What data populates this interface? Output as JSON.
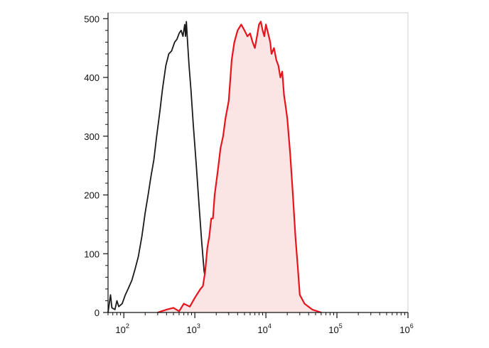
{
  "chart_data": {
    "type": "area",
    "xscale": "log",
    "xlim": [
      60,
      1000000
    ],
    "ylim": [
      0,
      510
    ],
    "x_ticks": [
      {
        "value": 100,
        "base": "10",
        "exp": "2"
      },
      {
        "value": 1000,
        "base": "10",
        "exp": "3"
      },
      {
        "value": 10000,
        "base": "10",
        "exp": "4"
      },
      {
        "value": 100000,
        "base": "10",
        "exp": "5"
      },
      {
        "value": 1000000,
        "base": "10",
        "exp": "6"
      }
    ],
    "y_ticks": [
      {
        "value": 0,
        "label": "0"
      },
      {
        "value": 100,
        "label": "100"
      },
      {
        "value": 200,
        "label": "200"
      },
      {
        "value": 300,
        "label": "300"
      },
      {
        "value": 400,
        "label": "400"
      },
      {
        "value": 500,
        "label": "500"
      }
    ],
    "series": [
      {
        "color": "#1a1a1a",
        "fill": "none",
        "points": [
          [
            60,
            0
          ],
          [
            65,
            30
          ],
          [
            68,
            8
          ],
          [
            75,
            5
          ],
          [
            80,
            20
          ],
          [
            85,
            10
          ],
          [
            95,
            15
          ],
          [
            105,
            30
          ],
          [
            115,
            40
          ],
          [
            130,
            55
          ],
          [
            145,
            75
          ],
          [
            160,
            95
          ],
          [
            180,
            130
          ],
          [
            200,
            170
          ],
          [
            220,
            200
          ],
          [
            240,
            230
          ],
          [
            265,
            260
          ],
          [
            290,
            300
          ],
          [
            320,
            340
          ],
          [
            350,
            380
          ],
          [
            390,
            420
          ],
          [
            430,
            440
          ],
          [
            470,
            445
          ],
          [
            520,
            460
          ],
          [
            560,
            465
          ],
          [
            600,
            475
          ],
          [
            640,
            480
          ],
          [
            680,
            470
          ],
          [
            720,
            490
          ],
          [
            740,
            470
          ],
          [
            760,
            495
          ],
          [
            790,
            460
          ],
          [
            830,
            420
          ],
          [
            880,
            380
          ],
          [
            950,
            320
          ],
          [
            1050,
            250
          ],
          [
            1150,
            180
          ],
          [
            1250,
            120
          ],
          [
            1350,
            70
          ],
          [
            1500,
            40
          ],
          [
            1650,
            25
          ],
          [
            1800,
            15
          ],
          [
            2000,
            8
          ],
          [
            2300,
            4
          ],
          [
            2700,
            1
          ],
          [
            3000,
            0
          ]
        ]
      },
      {
        "color": "#e8141c",
        "fill": "#fbe4e4",
        "points": [
          [
            300,
            0
          ],
          [
            400,
            5
          ],
          [
            500,
            8
          ],
          [
            600,
            2
          ],
          [
            700,
            15
          ],
          [
            850,
            10
          ],
          [
            1000,
            25
          ],
          [
            1200,
            40
          ],
          [
            1300,
            45
          ],
          [
            1400,
            70
          ],
          [
            1500,
            110
          ],
          [
            1600,
            130
          ],
          [
            1700,
            160
          ],
          [
            1800,
            160
          ],
          [
            1900,
            200
          ],
          [
            2100,
            240
          ],
          [
            2300,
            280
          ],
          [
            2500,
            300
          ],
          [
            2700,
            330
          ],
          [
            3000,
            360
          ],
          [
            3300,
            430
          ],
          [
            3600,
            460
          ],
          [
            4000,
            480
          ],
          [
            4500,
            490
          ],
          [
            5000,
            480
          ],
          [
            5500,
            470
          ],
          [
            6000,
            475
          ],
          [
            6500,
            460
          ],
          [
            7000,
            450
          ],
          [
            7500,
            470
          ],
          [
            8000,
            490
          ],
          [
            8500,
            495
          ],
          [
            9000,
            480
          ],
          [
            9500,
            470
          ],
          [
            10000,
            490
          ],
          [
            10500,
            480
          ],
          [
            11000,
            470
          ],
          [
            11500,
            460
          ],
          [
            12000,
            440
          ],
          [
            13000,
            450
          ],
          [
            14000,
            430
          ],
          [
            15000,
            420
          ],
          [
            16000,
            400
          ],
          [
            17000,
            410
          ],
          [
            18000,
            370
          ],
          [
            19000,
            350
          ],
          [
            20000,
            330
          ],
          [
            22000,
            270
          ],
          [
            24000,
            200
          ],
          [
            26000,
            130
          ],
          [
            28000,
            80
          ],
          [
            30000,
            30
          ],
          [
            35000,
            15
          ],
          [
            45000,
            5
          ],
          [
            60000,
            0
          ]
        ]
      }
    ]
  }
}
